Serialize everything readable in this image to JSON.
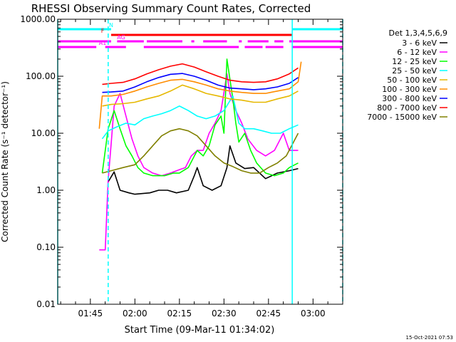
{
  "chart_data": {
    "type": "line",
    "title": "RHESSI Observing Summary Count Rates, Corrected",
    "xlabel": "Start Time (09-Mar-11 01:34:02)",
    "ylabel": "Corrected Count Rate (s⁻¹ detector⁻¹)",
    "ylim": [
      0.01,
      1000.0
    ],
    "yscale": "log",
    "y_ticks": [
      "1000.00",
      "100.00",
      "10.00",
      "1.00",
      "0.10",
      "0.01"
    ],
    "xlim": [
      "01:34",
      "03:10"
    ],
    "x_ticks": [
      "01:45",
      "02:00",
      "02:15",
      "02:30",
      "02:45",
      "03:00"
    ],
    "footer": "15-Oct-2021 07:53",
    "legend_title": "Det 1,3,4,5,6,9",
    "legend_position": "right",
    "flags": [
      {
        "label": "N",
        "color": "#00ffff",
        "intervals": [
          [
            "01:34",
            "01:52"
          ],
          [
            "02:53",
            "03:11"
          ]
        ]
      },
      {
        "label": "F",
        "color": "#ff0000",
        "intervals": [
          [
            "01:52",
            "02:53"
          ]
        ]
      },
      {
        "label": "AG",
        "color": "#ff00ff",
        "intervals": [
          [
            "01:34",
            "01:52"
          ],
          [
            "01:54",
            "02:03"
          ],
          [
            "02:04",
            "02:16"
          ],
          [
            "02:19",
            "02:20"
          ],
          [
            "02:23",
            "02:31"
          ],
          [
            "02:35",
            "02:36"
          ],
          [
            "02:38",
            "02:45"
          ],
          [
            "02:47",
            "02:50"
          ],
          [
            "02:52",
            "03:10"
          ]
        ]
      },
      {
        "label": "A1",
        "color": "#ff00ff",
        "intervals": [
          [
            "01:34",
            "01:47"
          ],
          [
            "01:50",
            "01:57"
          ],
          [
            "02:03",
            "02:35"
          ],
          [
            "02:37",
            "02:43"
          ],
          [
            "02:44",
            "02:50"
          ],
          [
            "02:53",
            "03:10"
          ]
        ]
      }
    ],
    "vlines": [
      {
        "time": "01:34",
        "color": "#00ffff",
        "style": "solid"
      },
      {
        "time": "01:51",
        "color": "#00ffff",
        "style": "dashed"
      },
      {
        "time": "02:53",
        "color": "#00ffff",
        "style": "solid"
      },
      {
        "time": "03:10",
        "color": "#00ffff",
        "style": "dashed"
      }
    ],
    "series": [
      {
        "name": "3 - 6 keV",
        "color": "#000000",
        "points": [
          [
            "01:51",
            "1.4"
          ],
          [
            "01:53",
            "2.1"
          ],
          [
            "01:55",
            "1.0"
          ],
          [
            "01:58",
            "0.9"
          ],
          [
            "02:00",
            "0.85"
          ],
          [
            "02:05",
            "0.9"
          ],
          [
            "02:08",
            "1.0"
          ],
          [
            "02:11",
            "1.0"
          ],
          [
            "02:14",
            "0.9"
          ],
          [
            "02:18",
            "1.0"
          ],
          [
            "02:20",
            "1.8"
          ],
          [
            "02:21",
            "2.5"
          ],
          [
            "02:23",
            "1.2"
          ],
          [
            "02:26",
            "1.0"
          ],
          [
            "02:29",
            "1.2"
          ],
          [
            "02:31",
            "2.5"
          ],
          [
            "02:32",
            "6.0"
          ],
          [
            "02:34",
            "3.0"
          ],
          [
            "02:37",
            "2.4"
          ],
          [
            "02:40",
            "2.5"
          ],
          [
            "02:44",
            "1.6"
          ],
          [
            "02:48",
            "2.0"
          ],
          [
            "02:52",
            "2.2"
          ],
          [
            "02:55",
            "2.4"
          ]
        ]
      },
      {
        "name": "6 - 12 keV",
        "color": "#ff00ff",
        "points": [
          [
            "01:48",
            "0.09"
          ],
          [
            "01:50",
            "0.09"
          ],
          [
            "01:51",
            "1.5"
          ],
          [
            "01:52",
            "6.5"
          ],
          [
            "01:53",
            "30"
          ],
          [
            "01:55",
            "50"
          ],
          [
            "01:57",
            "20"
          ],
          [
            "01:59",
            "8"
          ],
          [
            "02:01",
            "4"
          ],
          [
            "02:03",
            "2.5"
          ],
          [
            "02:06",
            "2"
          ],
          [
            "02:09",
            "1.8"
          ],
          [
            "02:12",
            "2"
          ],
          [
            "02:15",
            "2.3"
          ],
          [
            "02:17",
            "2.5"
          ],
          [
            "02:19",
            "4"
          ],
          [
            "02:21",
            "5"
          ],
          [
            "02:23",
            "5"
          ],
          [
            "02:25",
            "10"
          ],
          [
            "02:27",
            "15"
          ],
          [
            "02:29",
            "25"
          ],
          [
            "02:31",
            "110"
          ],
          [
            "02:32",
            "50"
          ],
          [
            "02:34",
            "25"
          ],
          [
            "02:36",
            "15"
          ],
          [
            "02:38",
            "8"
          ],
          [
            "02:41",
            "5"
          ],
          [
            "02:44",
            "4"
          ],
          [
            "02:47",
            "5"
          ],
          [
            "02:50",
            "10"
          ],
          [
            "02:52",
            "5"
          ],
          [
            "02:55",
            "5"
          ]
        ]
      },
      {
        "name": "12 - 25 keV",
        "color": "#00ff00",
        "points": [
          [
            "01:49",
            "2.0"
          ],
          [
            "01:51",
            "12"
          ],
          [
            "01:53",
            "25"
          ],
          [
            "01:55",
            "12"
          ],
          [
            "01:57",
            "6"
          ],
          [
            "01:59",
            "4"
          ],
          [
            "02:01",
            "2.5"
          ],
          [
            "02:03",
            "2"
          ],
          [
            "02:06",
            "1.8"
          ],
          [
            "02:10",
            "1.8"
          ],
          [
            "02:13",
            "2"
          ],
          [
            "02:15",
            "2"
          ],
          [
            "02:18",
            "2.5"
          ],
          [
            "02:21",
            "5"
          ],
          [
            "02:23",
            "4"
          ],
          [
            "02:25",
            "6"
          ],
          [
            "02:27",
            "14"
          ],
          [
            "02:29",
            "20"
          ],
          [
            "02:30",
            "10"
          ],
          [
            "02:31",
            "200"
          ],
          [
            "02:33",
            "40"
          ],
          [
            "02:34",
            "15"
          ],
          [
            "02:35",
            "7"
          ],
          [
            "02:37",
            "10"
          ],
          [
            "02:39",
            "5"
          ],
          [
            "02:41",
            "3"
          ],
          [
            "02:44",
            "2"
          ],
          [
            "02:47",
            "1.8"
          ],
          [
            "02:50",
            "2"
          ],
          [
            "02:52",
            "2.5"
          ],
          [
            "02:55",
            "3"
          ]
        ]
      },
      {
        "name": "25 - 50 keV",
        "color": "#00ffff",
        "points": [
          [
            "01:49",
            "8"
          ],
          [
            "01:51",
            "11"
          ],
          [
            "01:54",
            "13"
          ],
          [
            "01:57",
            "15"
          ],
          [
            "02:00",
            "14"
          ],
          [
            "02:03",
            "18"
          ],
          [
            "02:06",
            "20"
          ],
          [
            "02:09",
            "22"
          ],
          [
            "02:12",
            "25"
          ],
          [
            "02:15",
            "30"
          ],
          [
            "02:18",
            "25"
          ],
          [
            "02:21",
            "20"
          ],
          [
            "02:24",
            "18"
          ],
          [
            "02:27",
            "20"
          ],
          [
            "02:30",
            "25"
          ],
          [
            "02:33",
            "45"
          ],
          [
            "02:35",
            "15"
          ],
          [
            "02:37",
            "12"
          ],
          [
            "02:40",
            "12"
          ],
          [
            "02:43",
            "11"
          ],
          [
            "02:46",
            "10"
          ],
          [
            "02:49",
            "10"
          ],
          [
            "02:52",
            "12"
          ],
          [
            "02:55",
            "14"
          ]
        ]
      },
      {
        "name": "50 - 100 keV",
        "color": "#e6b800",
        "points": [
          [
            "01:49",
            "30"
          ],
          [
            "01:52",
            "32"
          ],
          [
            "01:56",
            "33"
          ],
          [
            "02:00",
            "35"
          ],
          [
            "02:04",
            "40"
          ],
          [
            "02:08",
            "45"
          ],
          [
            "02:12",
            "55"
          ],
          [
            "02:16",
            "70"
          ],
          [
            "02:20",
            "60"
          ],
          [
            "02:24",
            "50"
          ],
          [
            "02:28",
            "45"
          ],
          [
            "02:32",
            "40"
          ],
          [
            "02:36",
            "38"
          ],
          [
            "02:40",
            "35"
          ],
          [
            "02:44",
            "35"
          ],
          [
            "02:48",
            "40"
          ],
          [
            "02:52",
            "45"
          ],
          [
            "02:55",
            "55"
          ]
        ]
      },
      {
        "name": "100 - 300 keV",
        "color": "#ff8c00",
        "points": [
          [
            "01:48",
            "12"
          ],
          [
            "01:49",
            "45"
          ],
          [
            "01:52",
            "45"
          ],
          [
            "01:56",
            "48"
          ],
          [
            "02:00",
            "55"
          ],
          [
            "02:04",
            "65"
          ],
          [
            "02:08",
            "75"
          ],
          [
            "02:12",
            "85"
          ],
          [
            "02:16",
            "88"
          ],
          [
            "02:20",
            "80"
          ],
          [
            "02:24",
            "70"
          ],
          [
            "02:28",
            "60"
          ],
          [
            "02:32",
            "55"
          ],
          [
            "02:36",
            "52"
          ],
          [
            "02:40",
            "50"
          ],
          [
            "02:44",
            "50"
          ],
          [
            "02:48",
            "55"
          ],
          [
            "02:52",
            "60"
          ],
          [
            "02:55",
            "80"
          ],
          [
            "02:56",
            "180"
          ]
        ]
      },
      {
        "name": "300 - 800 keV",
        "color": "#0000ff",
        "points": [
          [
            "01:49",
            "52"
          ],
          [
            "01:52",
            "53"
          ],
          [
            "01:56",
            "55"
          ],
          [
            "02:00",
            "65"
          ],
          [
            "02:04",
            "80"
          ],
          [
            "02:08",
            "95"
          ],
          [
            "02:12",
            "108"
          ],
          [
            "02:16",
            "112"
          ],
          [
            "02:20",
            "100"
          ],
          [
            "02:24",
            "85"
          ],
          [
            "02:28",
            "70"
          ],
          [
            "02:32",
            "62"
          ],
          [
            "02:36",
            "60"
          ],
          [
            "02:40",
            "58"
          ],
          [
            "02:44",
            "60"
          ],
          [
            "02:48",
            "65"
          ],
          [
            "02:52",
            "75"
          ],
          [
            "02:55",
            "95"
          ]
        ]
      },
      {
        "name": "800 - 7000 keV",
        "color": "#ff0000",
        "points": [
          [
            "01:49",
            "72"
          ],
          [
            "01:52",
            "75"
          ],
          [
            "01:56",
            "78"
          ],
          [
            "02:00",
            "90"
          ],
          [
            "02:04",
            "110"
          ],
          [
            "02:08",
            "130"
          ],
          [
            "02:12",
            "150"
          ],
          [
            "02:16",
            "165"
          ],
          [
            "02:20",
            "145"
          ],
          [
            "02:24",
            "120"
          ],
          [
            "02:28",
            "100"
          ],
          [
            "02:32",
            "85"
          ],
          [
            "02:36",
            "80"
          ],
          [
            "02:40",
            "78"
          ],
          [
            "02:44",
            "80"
          ],
          [
            "02:48",
            "90"
          ],
          [
            "02:52",
            "110"
          ],
          [
            "02:55",
            "140"
          ]
        ]
      },
      {
        "name": "7000 - 15000 keV",
        "color": "#808000",
        "points": [
          [
            "01:49",
            "2.0"
          ],
          [
            "01:52",
            "2.2"
          ],
          [
            "01:56",
            "2.5"
          ],
          [
            "02:00",
            "2.8"
          ],
          [
            "02:03",
            "4"
          ],
          [
            "02:06",
            "6"
          ],
          [
            "02:09",
            "9"
          ],
          [
            "02:12",
            "11"
          ],
          [
            "02:15",
            "12"
          ],
          [
            "02:18",
            "11"
          ],
          [
            "02:21",
            "9"
          ],
          [
            "02:24",
            "6"
          ],
          [
            "02:27",
            "4"
          ],
          [
            "02:30",
            "3"
          ],
          [
            "02:33",
            "2.6"
          ],
          [
            "02:36",
            "2.2"
          ],
          [
            "02:39",
            "2.0"
          ],
          [
            "02:42",
            "2.0"
          ],
          [
            "02:45",
            "2.5"
          ],
          [
            "02:48",
            "3"
          ],
          [
            "02:51",
            "4"
          ],
          [
            "02:55",
            "10"
          ]
        ]
      }
    ]
  }
}
